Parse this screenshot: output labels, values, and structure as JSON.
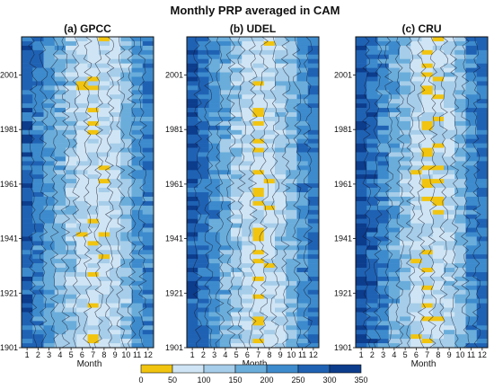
{
  "chart_data": {
    "type": "heatmap",
    "title": "Monthly PRP averaged in CAM",
    "xlabel": "Month",
    "ylabel": "",
    "x_ticks": [
      "1",
      "2",
      "3",
      "4",
      "5",
      "6",
      "7",
      "8",
      "9",
      "10",
      "11",
      "12"
    ],
    "y_ticks": [
      "1901",
      "1921",
      "1941",
      "1961",
      "1981",
      "2001"
    ],
    "ylim": [
      1901,
      2015
    ],
    "legend": {
      "placement": "bottom",
      "ticks": [
        "0",
        "50",
        "100",
        "150",
        "200",
        "250",
        "300",
        "350"
      ],
      "bins": [
        {
          "from": 0,
          "to": 50,
          "color": "#f1c40f"
        },
        {
          "from": 50,
          "to": 100,
          "color": "#cfe5f5"
        },
        {
          "from": 100,
          "to": 150,
          "color": "#a6cde9"
        },
        {
          "from": 150,
          "to": 200,
          "color": "#6aaddb"
        },
        {
          "from": 200,
          "to": 250,
          "color": "#3d8bcd"
        },
        {
          "from": 250,
          "to": 300,
          "color": "#1f62b4"
        },
        {
          "from": 300,
          "to": 350,
          "color": "#0c3c8c"
        }
      ]
    },
    "panels": [
      {
        "title": "(a) GPCC",
        "monthly_mean": [
          270,
          240,
          200,
          160,
          130,
          90,
          80,
          90,
          105,
          140,
          200,
          230
        ]
      },
      {
        "title": "(b) UDEL",
        "monthly_mean": [
          285,
          255,
          215,
          170,
          130,
          95,
          80,
          90,
          110,
          150,
          210,
          245
        ]
      },
      {
        "title": "(c) CRU",
        "monthly_mean": [
          300,
          260,
          225,
          175,
          140,
          90,
          75,
          85,
          110,
          150,
          220,
          255
        ]
      }
    ]
  }
}
